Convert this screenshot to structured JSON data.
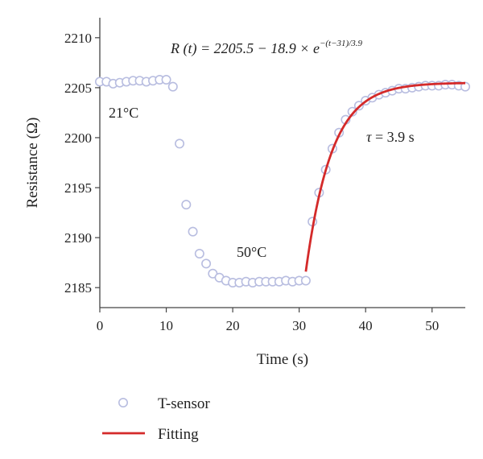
{
  "chart_data": {
    "type": "scatter",
    "xlabel": "Time (s)",
    "ylabel": "Resistance (Ω)",
    "xlim": [
      0,
      55
    ],
    "ylim": [
      2183,
      2212
    ],
    "xticks": [
      0,
      10,
      20,
      30,
      40,
      50
    ],
    "yticks": [
      2185,
      2190,
      2195,
      2200,
      2205,
      2210
    ],
    "grid": false,
    "legend_position": "bottom-left",
    "colors": {
      "sensor": "#b8bde0",
      "fit": "#d42a2a"
    },
    "series": [
      {
        "name": "T-sensor",
        "kind": "scatter",
        "x": [
          0,
          1,
          2,
          3,
          4,
          5,
          6,
          7,
          8,
          9,
          10,
          11,
          12,
          13,
          14,
          15,
          16,
          17,
          18,
          19,
          20,
          21,
          22,
          23,
          24,
          25,
          26,
          27,
          28,
          29,
          30,
          31,
          32,
          33,
          34,
          35,
          36,
          37,
          38,
          39,
          40,
          41,
          42,
          43,
          44,
          45,
          46,
          47,
          48,
          49,
          50,
          51,
          52,
          53,
          54,
          55
        ],
        "y": [
          2205.6,
          2205.6,
          2205.4,
          2205.5,
          2205.6,
          2205.7,
          2205.7,
          2205.6,
          2205.7,
          2205.8,
          2205.8,
          2205.1,
          2199.4,
          2193.3,
          2190.6,
          2188.4,
          2187.4,
          2186.4,
          2186.0,
          2185.7,
          2185.5,
          2185.5,
          2185.6,
          2185.5,
          2185.6,
          2185.6,
          2185.6,
          2185.6,
          2185.7,
          2185.6,
          2185.7,
          2185.7,
          2191.6,
          2194.5,
          2196.8,
          2198.9,
          2200.5,
          2201.8,
          2202.6,
          2203.2,
          2203.7,
          2204.0,
          2204.3,
          2204.5,
          2204.7,
          2204.9,
          2204.9,
          2205.0,
          2205.1,
          2205.2,
          2205.2,
          2205.2,
          2205.3,
          2205.3,
          2205.2,
          2205.1
        ]
      },
      {
        "name": "Fitting",
        "kind": "line",
        "formula": {
          "a": 2205.5,
          "b": 18.9,
          "t0": 31,
          "tau": 3.9
        },
        "x_start": 31,
        "x_end": 55
      }
    ],
    "annotations": {
      "equation_prefix": "R (t) = 2205.5 − 18.9 × ",
      "equation_e": "e",
      "equation_exponent": "−(t−31)/3.9",
      "label_21c": "21°C",
      "label_50c": "50°C",
      "tau_symbol": "τ",
      "tau_value": " = 3.9 s"
    }
  }
}
